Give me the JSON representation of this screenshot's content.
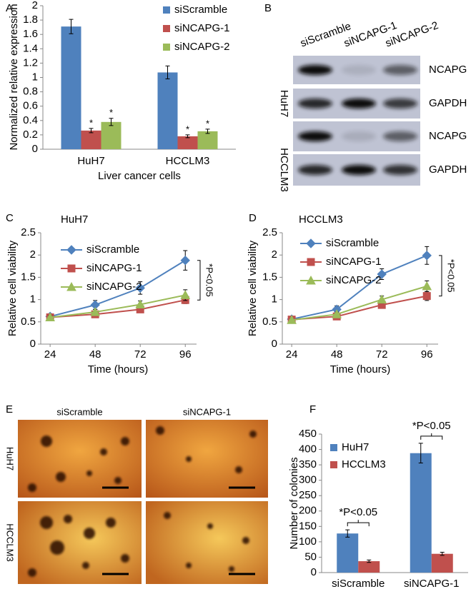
{
  "chart_data": [
    {
      "type": "bar",
      "label": "A",
      "ylabel": "Normalized relative expression",
      "xlabel": "Liver cancer cells",
      "categories": [
        "HuH7",
        "HCCLM3"
      ],
      "series": [
        {
          "name": "siScramble",
          "color": "#4f81bd",
          "values": [
            1.71,
            1.07
          ],
          "errors": [
            0.1,
            0.09
          ]
        },
        {
          "name": "siNCAPG-1",
          "color": "#c0504d",
          "values": [
            0.26,
            0.18
          ],
          "errors": [
            0.03,
            0.02
          ],
          "annotations": [
            "*",
            "*"
          ]
        },
        {
          "name": "siNCAPG-2",
          "color": "#9bbb59",
          "values": [
            0.38,
            0.25
          ],
          "errors": [
            0.05,
            0.03
          ],
          "annotations": [
            "*",
            "*"
          ]
        }
      ],
      "ylim": [
        0,
        2
      ],
      "yticks": [
        0,
        0.2,
        0.4,
        0.6,
        0.8,
        1,
        1.2,
        1.4,
        1.6,
        1.8,
        2
      ],
      "legend": "upper right"
    },
    {
      "type": "blot",
      "label": "B",
      "lanes": [
        "siScramble",
        "siNCAPG-1",
        "siNCAPG-2"
      ],
      "groups": [
        "HuH7",
        "HCCLM3"
      ],
      "bands": [
        "NCAPG",
        "GAPDH",
        "NCAPG",
        "GAPDH"
      ]
    },
    {
      "type": "line",
      "label": "C",
      "title": "HuH7",
      "ylabel": "Relative cell viability",
      "xlabel": "Time (hours)",
      "x": [
        24,
        48,
        72,
        96
      ],
      "series": [
        {
          "name": "siScramble",
          "color": "#4f81bd",
          "marker": "diamond",
          "values": [
            0.62,
            0.88,
            1.26,
            1.88
          ],
          "errors": [
            0.05,
            0.1,
            0.14,
            0.22
          ]
        },
        {
          "name": "siNCAPG-1",
          "color": "#c0504d",
          "marker": "square",
          "values": [
            0.6,
            0.67,
            0.78,
            0.99
          ],
          "errors": [
            0.04,
            0.05,
            0.07,
            0.08
          ]
        },
        {
          "name": "siNCAPG-2",
          "color": "#9bbb59",
          "marker": "triangle",
          "values": [
            0.6,
            0.72,
            0.89,
            1.1
          ],
          "errors": [
            0.04,
            0.06,
            0.08,
            0.12
          ]
        }
      ],
      "xlim": [
        19,
        102
      ],
      "xticks": [
        24,
        48,
        72,
        96
      ],
      "ylim": [
        0,
        2.5
      ],
      "yticks": [
        0,
        0.5,
        1,
        1.5,
        2,
        2.5
      ],
      "annotation": "*P<0.05",
      "legend": "upper left"
    },
    {
      "type": "line",
      "label": "D",
      "title": "HCCLM3",
      "ylabel": "Relative cell viability",
      "xlabel": "Time (hours)",
      "x": [
        24,
        48,
        72,
        96
      ],
      "series": [
        {
          "name": "siScramble",
          "color": "#4f81bd",
          "marker": "diamond",
          "values": [
            0.56,
            0.78,
            1.57,
            1.99
          ],
          "errors": [
            0.04,
            0.08,
            0.12,
            0.2
          ]
        },
        {
          "name": "siNCAPG-1",
          "color": "#c0504d",
          "marker": "square",
          "values": [
            0.55,
            0.62,
            0.88,
            1.08
          ],
          "errors": [
            0.03,
            0.04,
            0.07,
            0.1
          ]
        },
        {
          "name": "siNCAPG-2",
          "color": "#9bbb59",
          "marker": "triangle",
          "values": [
            0.54,
            0.67,
            1.0,
            1.3
          ],
          "errors": [
            0.03,
            0.05,
            0.08,
            0.12
          ]
        }
      ],
      "xlim": [
        19,
        102
      ],
      "xticks": [
        24,
        48,
        72,
        96
      ],
      "ylim": [
        0,
        2.5
      ],
      "yticks": [
        0,
        0.5,
        1,
        1.5,
        2,
        2.5
      ],
      "annotation": "*P<0.05",
      "legend": "upper left"
    },
    {
      "type": "micrograph",
      "label": "E",
      "columns": [
        "siScramble",
        "siNCAPG-1"
      ],
      "rows": [
        "HuH7",
        "HCCLM3"
      ]
    },
    {
      "type": "bar",
      "label": "F",
      "ylabel": "Number of colonies",
      "categories": [
        "siScramble",
        "siNCAPG-1"
      ],
      "series": [
        {
          "name": "HuH7",
          "color": "#4f81bd",
          "values": [
            127,
            388
          ],
          "errors": [
            12,
            32
          ]
        },
        {
          "name": "HCCLM3",
          "color": "#c0504d",
          "values": [
            37,
            61
          ],
          "errors": [
            4,
            5
          ]
        }
      ],
      "ylim": [
        0,
        450
      ],
      "yticks": [
        0,
        50,
        100,
        150,
        200,
        250,
        300,
        350,
        400,
        450
      ],
      "annotations": [
        "*P<0.05",
        "*P<0.05"
      ],
      "legend": "upper left"
    }
  ]
}
